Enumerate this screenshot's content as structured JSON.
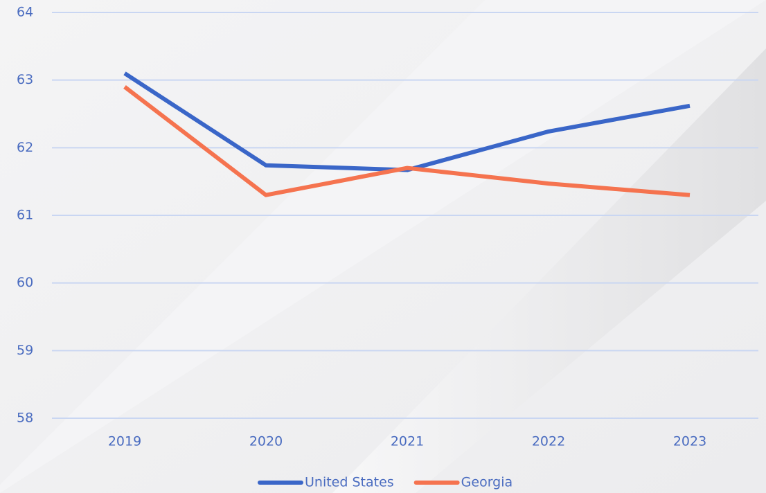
{
  "chart_data": {
    "type": "line",
    "categories": [
      "2019",
      "2020",
      "2021",
      "2022",
      "2023"
    ],
    "series": [
      {
        "name": "United States",
        "color": "#3a66c8",
        "values": [
          63.1,
          61.74,
          61.67,
          62.24,
          62.62
        ]
      },
      {
        "name": "Georgia",
        "color": "#f5734f",
        "values": [
          62.9,
          61.3,
          61.7,
          61.47,
          61.3
        ]
      }
    ],
    "ylim": [
      58,
      64
    ],
    "yticks": [
      58,
      59,
      60,
      61,
      62,
      63,
      64
    ],
    "grid": true,
    "legend": "bottom"
  }
}
